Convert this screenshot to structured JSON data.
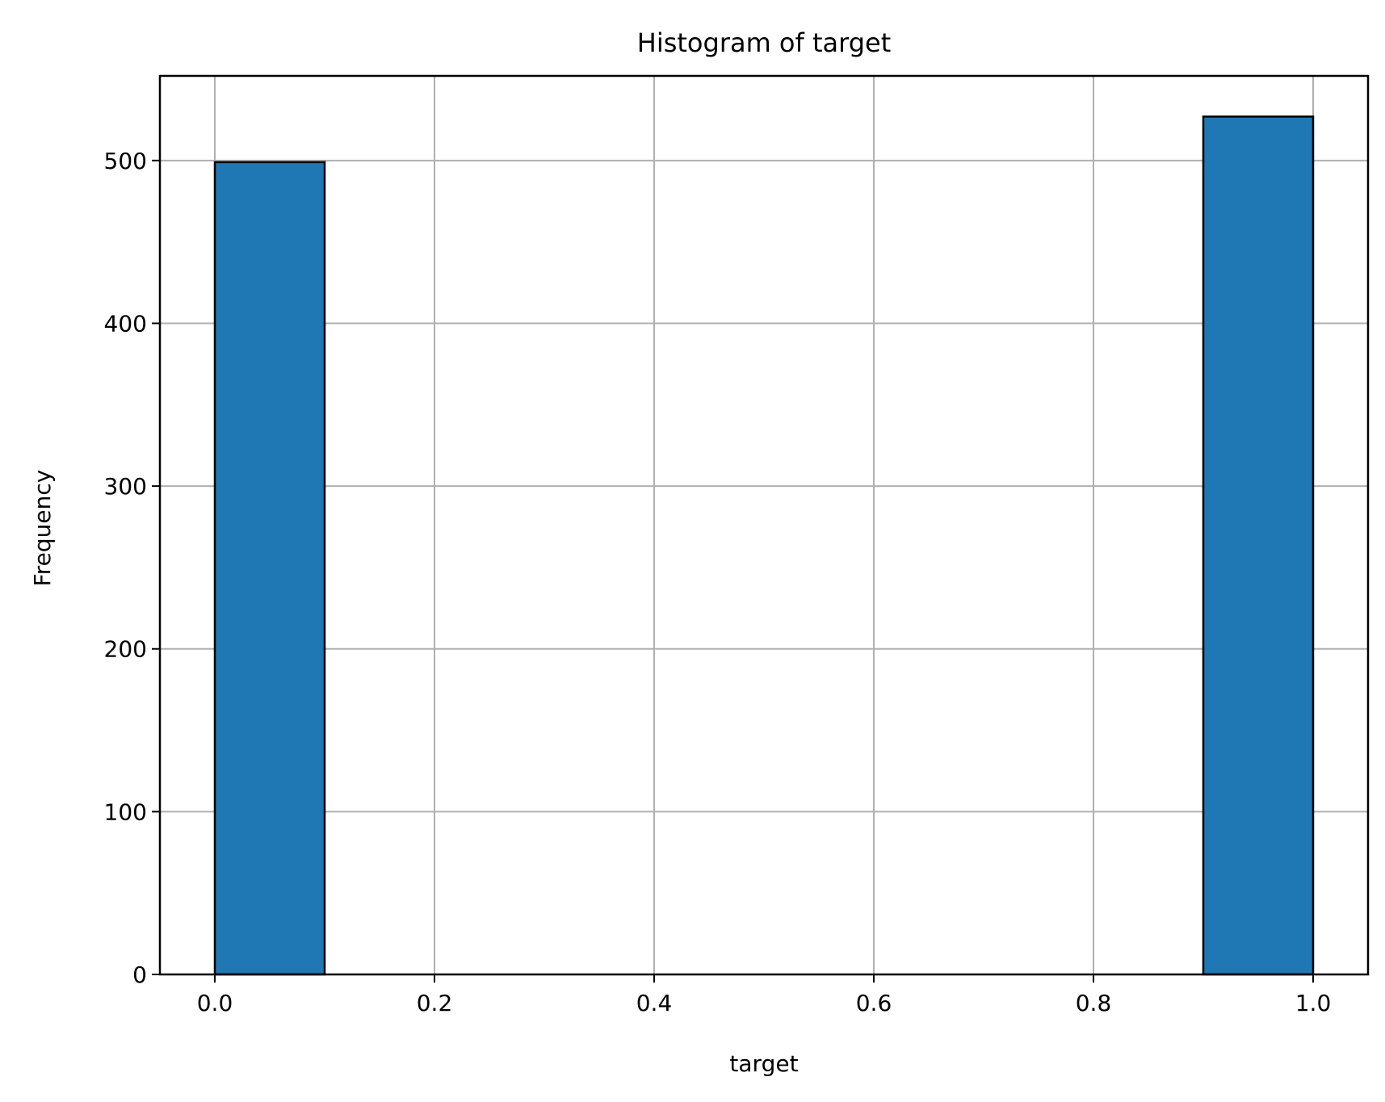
{
  "chart_data": {
    "type": "bar",
    "title": "Histogram of target",
    "xlabel": "target",
    "ylabel": "Frequency",
    "xlim": [
      -0.05,
      1.05
    ],
    "ylim": [
      0,
      552
    ],
    "x_ticks": [
      0.0,
      0.2,
      0.4,
      0.6,
      0.8,
      1.0
    ],
    "x_tick_labels": [
      "0.0",
      "0.2",
      "0.4",
      "0.6",
      "0.8",
      "1.0"
    ],
    "y_ticks": [
      0,
      100,
      200,
      300,
      400,
      500
    ],
    "y_tick_labels": [
      "0",
      "100",
      "200",
      "300",
      "400",
      "500"
    ],
    "grid": true,
    "bins": [
      {
        "start": 0.0,
        "end": 0.1,
        "value": 499
      },
      {
        "start": 0.9,
        "end": 1.0,
        "value": 527
      }
    ],
    "colors": {
      "bar_fill": "#1f77b4",
      "bar_edge": "#000000",
      "grid": "#b0b0b0",
      "axes": "#000000"
    }
  }
}
